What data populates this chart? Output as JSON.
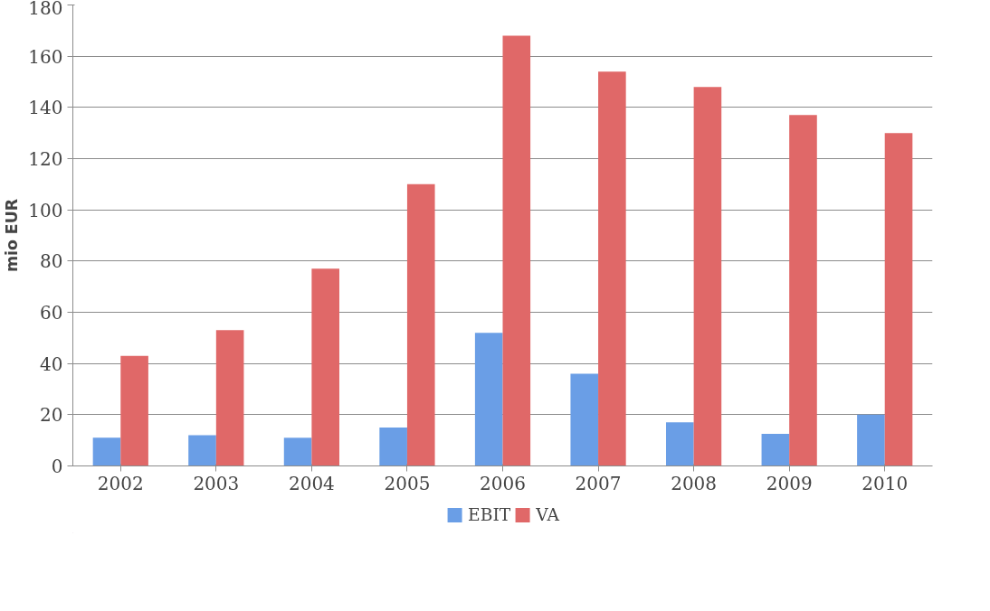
{
  "chart_data": {
    "type": "bar",
    "ylabel": "mio EUR",
    "categories": [
      "2002",
      "2003",
      "2004",
      "2005",
      "2006",
      "2007",
      "2008",
      "2009",
      "2010"
    ],
    "series": [
      {
        "name": "EBIT",
        "color": "#6a9ee6",
        "values": [
          11,
          12,
          11,
          15,
          52,
          36,
          17,
          12.5,
          20
        ]
      },
      {
        "name": "VA",
        "color": "#e06868",
        "values": [
          43,
          53,
          77,
          110,
          168,
          154,
          148,
          137,
          130
        ]
      }
    ],
    "ylim": [
      0,
      180
    ],
    "yticks": [
      0,
      20,
      40,
      60,
      80,
      100,
      120,
      140,
      160,
      180
    ],
    "grid": "y",
    "legend": "bottom"
  }
}
